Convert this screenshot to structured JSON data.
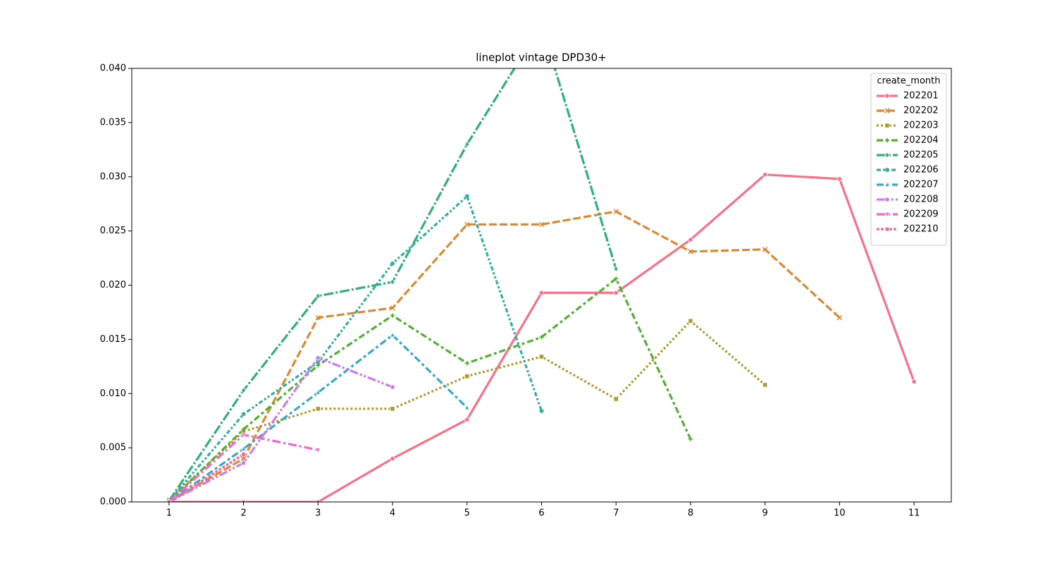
{
  "chart_data": {
    "type": "line",
    "title": "lineplot vintage DPD30+",
    "legend_title": "create_month",
    "legend": "upper right",
    "x": [
      1,
      2,
      3,
      4,
      5,
      6,
      7,
      8,
      9,
      10,
      11
    ],
    "xlim": [
      0.5,
      11.5
    ],
    "xticks": [
      1,
      2,
      3,
      4,
      5,
      6,
      7,
      8,
      9,
      10,
      11
    ],
    "ylim": [
      0,
      0.04
    ],
    "yticks": [
      {
        "value": 0,
        "label": "0.000"
      },
      {
        "value": 0.005,
        "label": "0.005"
      },
      {
        "value": 0.01,
        "label": "0.010"
      },
      {
        "value": 0.015,
        "label": "0.015"
      },
      {
        "value": 0.02,
        "label": "0.020"
      },
      {
        "value": 0.025,
        "label": "0.025"
      },
      {
        "value": 0.03,
        "label": "0.030"
      },
      {
        "value": 0.035,
        "label": "0.035"
      },
      {
        "value": 0.04,
        "label": "0.040"
      }
    ],
    "series": [
      {
        "name": "202201",
        "color": "#f77189",
        "marker": "circle",
        "values": [
          0,
          0,
          0,
          0.004,
          0.0076,
          0.0193,
          0.0193,
          0.0242,
          0.0302,
          0.0298,
          0.0111
        ]
      },
      {
        "name": "202202",
        "color": "#dc8932",
        "marker": "x",
        "values": [
          0,
          0.004,
          0.017,
          0.0179,
          0.0256,
          0.0256,
          0.0268,
          0.0231,
          0.0233,
          0.017,
          null
        ]
      },
      {
        "name": "202203",
        "color": "#ae9d31",
        "marker": "square",
        "values": [
          0.0002,
          0.0065,
          0.0086,
          0.0086,
          0.0116,
          0.0134,
          0.0095,
          0.0167,
          0.0108,
          null,
          null
        ]
      },
      {
        "name": "202204",
        "color": "#50b131",
        "marker": "plus",
        "values": [
          0,
          0.0067,
          0.0126,
          0.0172,
          0.0128,
          0.0152,
          0.0206,
          0.0058,
          null,
          null,
          null
        ]
      },
      {
        "name": "202205",
        "color": "#33b07a",
        "marker": "diamond",
        "values": [
          0.0001,
          0.0103,
          0.019,
          0.0203,
          0.033,
          0.044,
          0.0215,
          null,
          null,
          null,
          null
        ]
      },
      {
        "name": "202206",
        "color": "#36ada4",
        "marker": "star",
        "values": [
          0.0001,
          0.0081,
          0.0129,
          0.022,
          0.0282,
          0.0084,
          null,
          null,
          null,
          null,
          null
        ]
      },
      {
        "name": "202207",
        "color": "#38a9c5",
        "marker": "triangle",
        "values": [
          0,
          0.0049,
          0.0101,
          0.0154,
          0.0087,
          null,
          null,
          null,
          null,
          null,
          null
        ]
      },
      {
        "name": "202208",
        "color": "#cc7af4",
        "marker": "circle",
        "values": [
          0,
          0.0036,
          0.0133,
          0.0106,
          null,
          null,
          null,
          null,
          null,
          null,
          null
        ]
      },
      {
        "name": "202209",
        "color": "#f565cc",
        "marker": "triangle-down",
        "values": [
          0,
          0.0062,
          0.0048,
          null,
          null,
          null,
          null,
          null,
          null,
          null,
          null
        ]
      },
      {
        "name": "202210",
        "color": "#f56a9e",
        "marker": "circle",
        "values": [
          0,
          0.0044,
          null,
          null,
          null,
          null,
          null,
          null,
          null,
          null,
          null
        ]
      }
    ]
  }
}
